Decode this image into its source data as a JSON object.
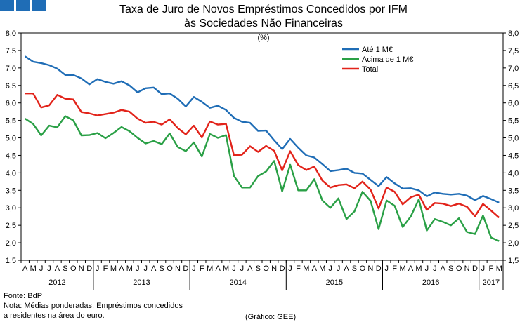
{
  "header": {
    "title_line1": "Taxa de Juro de Novos Empréstimos Concedidos por IFM",
    "title_line2": "às Sociedades Não Financeiras",
    "unit": "(%)"
  },
  "footer": {
    "source": "Fonte: BdP",
    "note_line1": "Nota: Médias ponderadas. Empréstimos concedidos",
    "note_line2": "a residentes na área do euro.",
    "credit": "(Gráfico: GEE)"
  },
  "chart_data": {
    "type": "line",
    "title": "Taxa de Juro de Novos Empréstimos Concedidos por IFM às Sociedades Não Financeiras",
    "ylim": [
      1.5,
      8.0
    ],
    "y_ticks": [
      "1,5",
      "2,0",
      "2,5",
      "3,0",
      "3,5",
      "4,0",
      "4,5",
      "5,0",
      "5,5",
      "6,0",
      "6,5",
      "7,0",
      "7,5",
      "8,0"
    ],
    "months": [
      "A",
      "M",
      "J",
      "J",
      "A",
      "S",
      "O",
      "N",
      "D",
      "J",
      "F",
      "M",
      "A",
      "M",
      "J",
      "J",
      "A",
      "S",
      "O",
      "N",
      "D",
      "J",
      "F",
      "M",
      "A",
      "M",
      "J",
      "J",
      "A",
      "S",
      "O",
      "N",
      "D",
      "J",
      "F",
      "M",
      "A",
      "M",
      "J",
      "J",
      "A",
      "S",
      "O",
      "N",
      "D",
      "J",
      "F",
      "M",
      "A",
      "M",
      "J",
      "J",
      "A",
      "S",
      "O",
      "N",
      "D",
      "J",
      "F",
      "M"
    ],
    "years": [
      {
        "label": "2012",
        "start": 0,
        "count": 9
      },
      {
        "label": "2013",
        "start": 9,
        "count": 12
      },
      {
        "label": "2014",
        "start": 21,
        "count": 12
      },
      {
        "label": "2015",
        "start": 33,
        "count": 12
      },
      {
        "label": "2016",
        "start": 45,
        "count": 12
      },
      {
        "label": "2017",
        "start": 57,
        "count": 3
      }
    ],
    "legend_position": "top-right",
    "series": [
      {
        "name": "Até 1 M€",
        "color": "#1f6db6",
        "values": [
          7.33,
          7.18,
          7.14,
          7.08,
          6.98,
          6.8,
          6.8,
          6.7,
          6.53,
          6.68,
          6.6,
          6.55,
          6.62,
          6.5,
          6.3,
          6.42,
          6.44,
          6.25,
          6.27,
          6.12,
          5.9,
          6.17,
          6.03,
          5.86,
          5.92,
          5.8,
          5.57,
          5.46,
          5.43,
          5.2,
          5.21,
          4.93,
          4.68,
          4.97,
          4.72,
          4.5,
          4.44,
          4.25,
          4.05,
          4.08,
          4.12,
          4.0,
          3.98,
          3.8,
          3.62,
          3.88,
          3.7,
          3.55,
          3.56,
          3.5,
          3.33,
          3.44,
          3.4,
          3.38,
          3.4,
          3.35,
          3.22,
          3.34,
          3.25,
          3.15
        ]
      },
      {
        "name": "Acima de 1 M€",
        "color": "#2aa046",
        "values": [
          5.55,
          5.4,
          5.07,
          5.35,
          5.3,
          5.62,
          5.5,
          5.07,
          5.08,
          5.14,
          4.99,
          5.14,
          5.31,
          5.19,
          5.0,
          4.84,
          4.91,
          4.82,
          5.13,
          4.74,
          4.62,
          4.87,
          4.47,
          5.11,
          5.0,
          5.08,
          3.91,
          3.58,
          3.58,
          3.91,
          4.04,
          4.34,
          3.47,
          4.23,
          3.5,
          3.5,
          3.82,
          3.21,
          3.0,
          3.27,
          2.68,
          2.9,
          3.46,
          3.2,
          2.39,
          3.21,
          3.06,
          2.45,
          2.75,
          3.24,
          2.35,
          2.68,
          2.6,
          2.5,
          2.7,
          2.31,
          2.25,
          2.78,
          2.15,
          2.05
        ]
      },
      {
        "name": "Total",
        "color": "#e2231a",
        "values": [
          6.27,
          6.27,
          5.87,
          5.93,
          6.23,
          6.12,
          6.1,
          5.74,
          5.7,
          5.64,
          5.68,
          5.72,
          5.8,
          5.75,
          5.55,
          5.43,
          5.46,
          5.38,
          5.53,
          5.28,
          5.1,
          5.35,
          5.01,
          5.47,
          5.38,
          5.4,
          4.5,
          4.52,
          4.76,
          4.6,
          4.77,
          4.63,
          4.07,
          4.62,
          4.22,
          4.08,
          4.18,
          3.78,
          3.58,
          3.65,
          3.67,
          3.56,
          3.75,
          3.52,
          2.98,
          3.58,
          3.46,
          3.1,
          3.3,
          3.38,
          2.94,
          3.14,
          3.12,
          3.05,
          3.12,
          3.03,
          2.76,
          3.11,
          2.92,
          2.72
        ]
      }
    ]
  }
}
